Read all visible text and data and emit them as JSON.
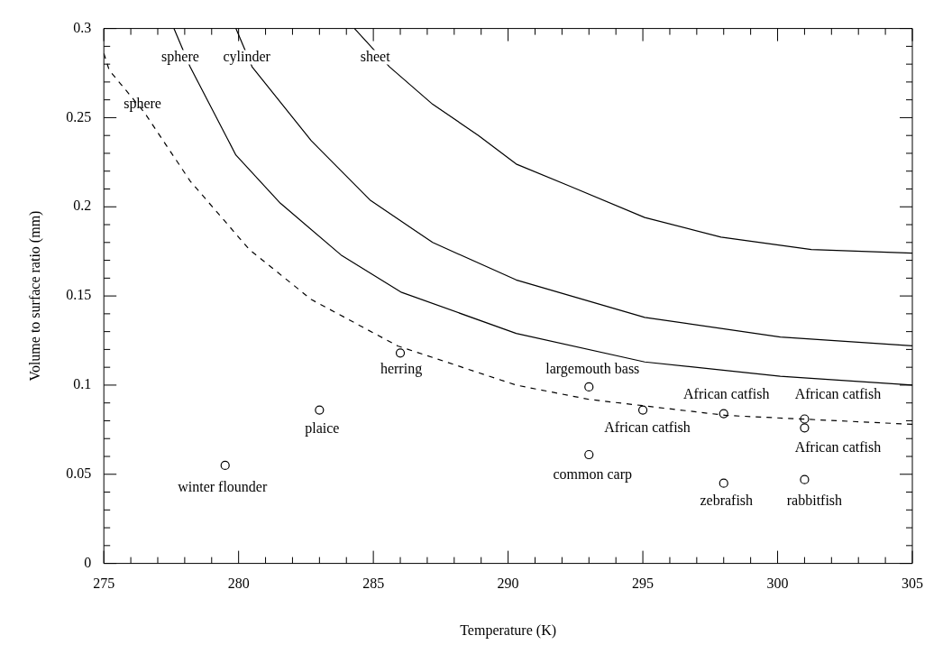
{
  "chart_data": {
    "type": "scatter",
    "xlabel": "Temperature (K)",
    "ylabel": "Volume to surface ratio (mm)",
    "xlim": [
      275,
      305
    ],
    "ylim": [
      0,
      0.3
    ],
    "xticks": [
      275,
      {
        "value": 276,
        "label": null
      },
      {
        "value": 277,
        "label": null
      },
      {
        "value": 278,
        "label": null
      },
      {
        "value": 279,
        "label": null
      },
      280,
      {
        "value": 281,
        "label": null
      },
      {
        "value": 282,
        "label": null
      },
      {
        "value": 283,
        "label": null
      },
      {
        "value": 284,
        "label": null
      },
      285,
      {
        "value": 286,
        "label": null
      },
      {
        "value": 287,
        "label": null
      },
      {
        "value": 288,
        "label": null
      },
      {
        "value": 289,
        "label": null
      },
      290,
      {
        "value": 291,
        "label": null
      },
      {
        "value": 292,
        "label": null
      },
      {
        "value": 293,
        "label": null
      },
      {
        "value": 294,
        "label": null
      },
      295,
      {
        "value": 296,
        "label": null
      },
      {
        "value": 297,
        "label": null
      },
      {
        "value": 298,
        "label": null
      },
      {
        "value": 299,
        "label": null
      },
      300,
      {
        "value": 301,
        "label": null
      },
      {
        "value": 302,
        "label": null
      },
      {
        "value": 303,
        "label": null
      },
      {
        "value": 304,
        "label": null
      },
      305
    ],
    "yticks": [
      0,
      {
        "value": 0.01,
        "label": null
      },
      {
        "value": 0.02,
        "label": null
      },
      {
        "value": 0.03,
        "label": null
      },
      {
        "value": 0.04,
        "label": null
      },
      0.05,
      {
        "value": 0.06,
        "label": null
      },
      {
        "value": 0.07,
        "label": null
      },
      {
        "value": 0.08,
        "label": null
      },
      {
        "value": 0.09,
        "label": null
      },
      0.1,
      {
        "value": 0.11,
        "label": null
      },
      {
        "value": 0.12,
        "label": null
      },
      {
        "value": 0.13,
        "label": null
      },
      {
        "value": 0.14,
        "label": null
      },
      0.15,
      {
        "value": 0.16,
        "label": null
      },
      {
        "value": 0.17,
        "label": null
      },
      {
        "value": 0.18,
        "label": null
      },
      {
        "value": 0.19,
        "label": null
      },
      0.2,
      {
        "value": 0.21,
        "label": null
      },
      {
        "value": 0.22,
        "label": null
      },
      {
        "value": 0.23,
        "label": null
      },
      {
        "value": 0.24,
        "label": null
      },
      0.25,
      {
        "value": 0.26,
        "label": null
      },
      {
        "value": 0.27,
        "label": null
      },
      {
        "value": 0.28,
        "label": null
      },
      {
        "value": 0.29,
        "label": null
      },
      0.3
    ],
    "grid": false,
    "legend": false,
    "marker": "circle",
    "series": [
      {
        "color": "#000000",
        "x": [
          279.5,
          283,
          286,
          293,
          295,
          293,
          298,
          298,
          301,
          301,
          301
        ],
        "values": [
          0.055,
          0.086,
          0.118,
          0.099,
          0.086,
          0.061,
          0.084,
          0.045,
          0.081,
          0.076,
          0.047
        ]
      },
      {
        "type": "line",
        "color": "#000000",
        "marker": "none",
        "line_style": "solid",
        "x": [
          277.6,
          278.2,
          279.9,
          281.55,
          283.8,
          286.05,
          290.3,
          295.07,
          300.1,
          305
        ],
        "values": [
          0.3,
          0.2785,
          0.229,
          0.202,
          0.173,
          0.152,
          0.129,
          0.113,
          0.105,
          0.1
        ]
      },
      {
        "type": "line",
        "color": "#000000",
        "marker": "none",
        "line_style": "solid",
        "x": [
          279.9,
          280.5,
          282.7,
          284.9,
          287.2,
          290.3,
          295.07,
          300.1,
          305
        ],
        "values": [
          0.3,
          0.2785,
          0.237,
          0.2035,
          0.18,
          0.159,
          0.138,
          0.127,
          0.122
        ]
      },
      {
        "type": "line",
        "color": "#000000",
        "marker": "none",
        "line_style": "solid",
        "x": [
          284.3,
          285.6,
          287.2,
          288.9,
          290.3,
          292.3,
          295.07,
          297.9,
          301.25,
          305
        ],
        "values": [
          0.3,
          0.2785,
          0.2575,
          0.24,
          0.224,
          0.2115,
          0.194,
          0.183,
          0.176,
          0.174
        ]
      },
      {
        "type": "line",
        "color": "#000000",
        "marker": "none",
        "line_style": "dashed",
        "x": [
          275,
          275.2,
          276.5,
          278.2,
          280.4,
          282.7,
          285.9,
          290.3,
          293,
          298.1,
          305
        ],
        "values": [
          0.286,
          0.2766,
          0.253,
          0.2145,
          0.176,
          0.148,
          0.122,
          0.1,
          0.092,
          0.083,
          0.078
        ]
      }
    ],
    "annotations": [
      {
        "text": "sphere",
        "x": 277.6,
        "y": 0.3
      },
      {
        "text": "cylinder",
        "x": 279.9,
        "y": 0.3
      },
      {
        "text": "sheet",
        "x": 284.3,
        "y": 0.3
      },
      {
        "text": "sphere",
        "x": 276.5,
        "y": 0.253
      },
      {
        "text": "winter flounder",
        "x": 279.5,
        "y": 0.055
      },
      {
        "text": "plaice",
        "x": 283,
        "y": 0.086
      },
      {
        "text": "herring",
        "x": 286,
        "y": 0.118
      },
      {
        "text": "largemouth bass",
        "x": 293,
        "y": 0.099
      },
      {
        "text": "African catfish",
        "x": 295,
        "y": 0.086
      },
      {
        "text": "common carp",
        "x": 293,
        "y": 0.061
      },
      {
        "text": "African catfish",
        "x": 298,
        "y": 0.084
      },
      {
        "text": "African catfish",
        "x": 301,
        "y": 0.081
      },
      {
        "text": "African catfish",
        "x": 301,
        "y": 0.076
      },
      {
        "text": "zebrafish",
        "x": 298,
        "y": 0.045
      },
      {
        "text": "rabbitfish",
        "x": 301,
        "y": 0.047
      }
    ]
  }
}
